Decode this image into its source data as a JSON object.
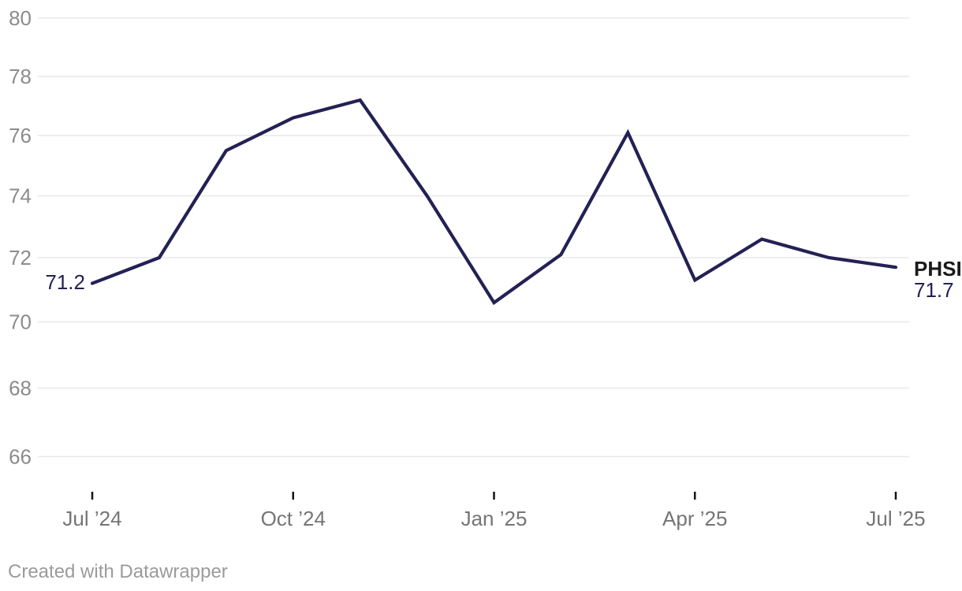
{
  "chart_data": {
    "type": "line",
    "title": "",
    "series": [
      {
        "name": "PHSI",
        "values": [
          71.2,
          72.0,
          75.5,
          76.6,
          77.2,
          74.0,
          70.6,
          72.1,
          76.1,
          71.3,
          72.6,
          72.0,
          71.7
        ]
      }
    ],
    "x": [
      "Jul ’24",
      "Aug ’24",
      "Sep ’24",
      "Oct ’24",
      "Nov ’24",
      "Dec ’24",
      "Jan ’25",
      "Feb ’25",
      "Mar ’25",
      "Apr ’25",
      "May ’25",
      "Jun ’25",
      "Jul ’25"
    ],
    "x_tick_labels": [
      "Jul ’24",
      "Oct ’24",
      "Jan ’25",
      "Apr ’25",
      "Jul ’25"
    ],
    "y_ticks": [
      80,
      78,
      76,
      74,
      72,
      70,
      68,
      66
    ],
    "ylim": [
      66,
      80
    ],
    "grid": "horizontal-only",
    "legend_position": "end-of-line",
    "start_point_label": "71.2",
    "end_point_label": "71.7"
  },
  "labels": {
    "start_value": "71.2",
    "series_name": "PHSI",
    "end_value": "71.7"
  },
  "footer": {
    "attribution": "Created with Datawrapper"
  },
  "colors": {
    "line": "#232154",
    "value_label": "#232154",
    "series_label": "#1a1a1a",
    "y_axis_label": "#8c8c8c",
    "x_axis_label": "#757575",
    "gridline": "#e8e8e8",
    "tick_mark": "#141414",
    "footer_text": "#9b9b9b",
    "background": "#ffffff"
  }
}
